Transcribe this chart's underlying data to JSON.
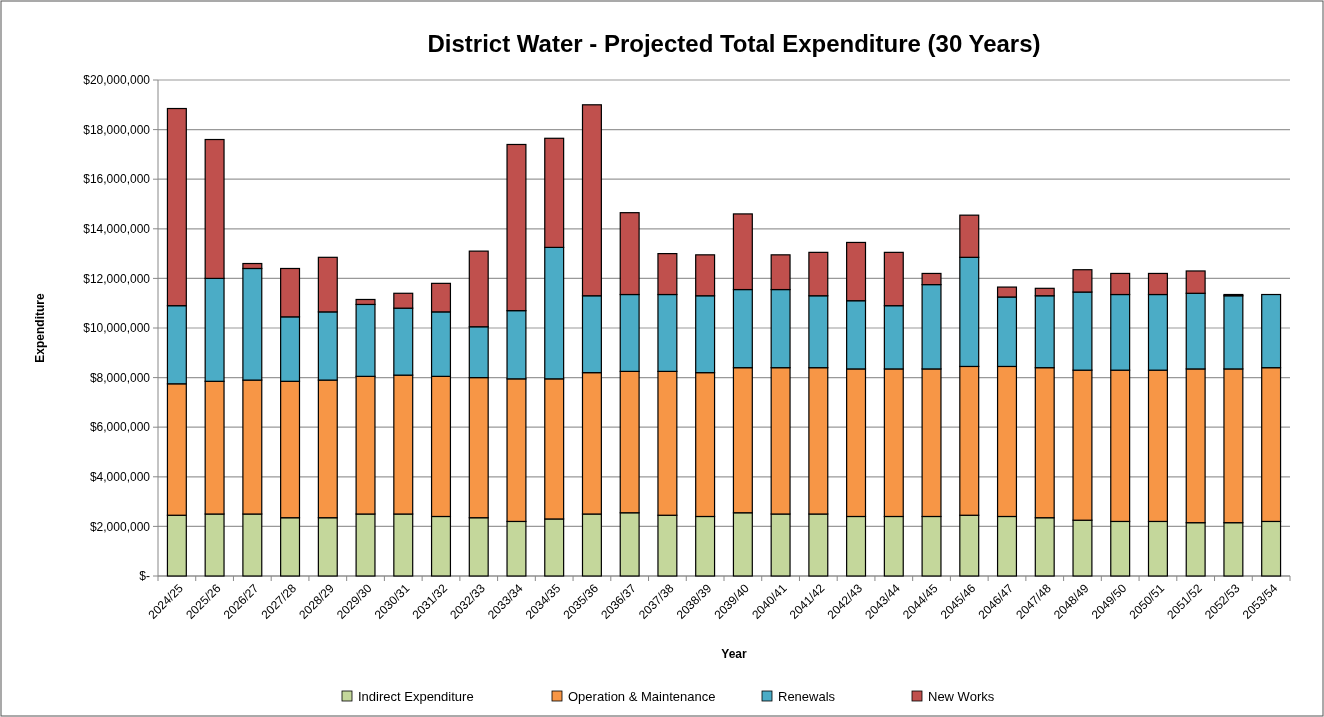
{
  "chart_data": {
    "type": "bar",
    "stacked": true,
    "title": "District Water - Projected Total Expenditure (30 Years)",
    "xlabel": "Year",
    "ylabel": "Expenditure",
    "categories": [
      "2024/25",
      "2025/26",
      "2026/27",
      "2027/28",
      "2028/29",
      "2029/30",
      "2030/31",
      "2031/32",
      "2032/33",
      "2033/34",
      "2034/35",
      "2035/36",
      "2036/37",
      "2037/38",
      "2038/39",
      "2039/40",
      "2040/41",
      "2041/42",
      "2042/43",
      "2043/44",
      "2044/45",
      "2045/46",
      "2046/47",
      "2047/48",
      "2048/49",
      "2049/50",
      "2050/51",
      "2051/52",
      "2052/53",
      "2053/54"
    ],
    "series": [
      {
        "name": "Indirect Expenditure",
        "color": "#c4d79b",
        "values": [
          2450000,
          2500000,
          2500000,
          2350000,
          2350000,
          2500000,
          2500000,
          2400000,
          2350000,
          2200000,
          2300000,
          2500000,
          2550000,
          2450000,
          2400000,
          2550000,
          2500000,
          2500000,
          2400000,
          2400000,
          2400000,
          2450000,
          2400000,
          2350000,
          2250000,
          2200000,
          2200000,
          2150000,
          2150000,
          2200000
        ]
      },
      {
        "name": "Operation & Maintenance",
        "color": "#f79646",
        "values": [
          5300000,
          5350000,
          5400000,
          5500000,
          5550000,
          5550000,
          5600000,
          5650000,
          5650000,
          5750000,
          5650000,
          5700000,
          5700000,
          5800000,
          5800000,
          5850000,
          5900000,
          5900000,
          5950000,
          5950000,
          5950000,
          6000000,
          6050000,
          6050000,
          6050000,
          6100000,
          6100000,
          6200000,
          6200000,
          6200000
        ]
      },
      {
        "name": "Renewals",
        "color": "#4bacc6",
        "values": [
          3150000,
          4150000,
          4500000,
          2600000,
          2750000,
          2900000,
          2700000,
          2600000,
          2050000,
          2750000,
          5300000,
          3100000,
          3100000,
          3100000,
          3100000,
          3150000,
          3150000,
          2900000,
          2750000,
          2550000,
          3400000,
          4400000,
          2800000,
          2900000,
          3150000,
          3050000,
          3050000,
          3050000,
          2950000,
          2950000
        ]
      },
      {
        "name": "New Works",
        "color": "#c0504d",
        "values": [
          7950000,
          5600000,
          200000,
          1950000,
          2200000,
          200000,
          600000,
          1150000,
          3050000,
          6700000,
          4400000,
          7700000,
          3300000,
          1650000,
          1650000,
          3050000,
          1400000,
          1750000,
          2350000,
          2150000,
          450000,
          1700000,
          400000,
          300000,
          900000,
          850000,
          850000,
          900000,
          50000,
          0
        ]
      }
    ],
    "ylim": [
      0,
      20000000
    ],
    "yticks": [
      {
        "value": 0,
        "label": "$-"
      },
      {
        "value": 2000000,
        "label": "$2,000,000"
      },
      {
        "value": 4000000,
        "label": "$4,000,000"
      },
      {
        "value": 6000000,
        "label": "$6,000,000"
      },
      {
        "value": 8000000,
        "label": "$8,000,000"
      },
      {
        "value": 10000000,
        "label": "$10,000,000"
      },
      {
        "value": 12000000,
        "label": "$12,000,000"
      },
      {
        "value": 14000000,
        "label": "$14,000,000"
      },
      {
        "value": 16000000,
        "label": "$16,000,000"
      },
      {
        "value": 18000000,
        "label": "$18,000,000"
      },
      {
        "value": 20000000,
        "label": "$20,000,000"
      }
    ],
    "grid": "y",
    "legend": "bottom"
  }
}
